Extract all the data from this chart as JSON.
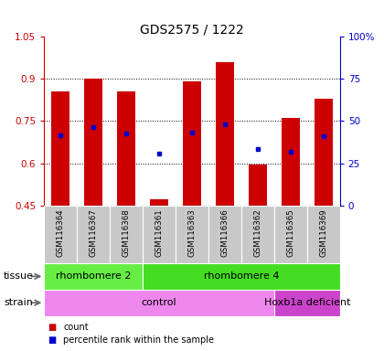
{
  "title": "GDS2575 / 1222",
  "samples": [
    "GSM116364",
    "GSM116367",
    "GSM116368",
    "GSM116361",
    "GSM116363",
    "GSM116366",
    "GSM116362",
    "GSM116365",
    "GSM116369"
  ],
  "count_values": [
    0.855,
    0.9,
    0.855,
    0.47,
    0.89,
    0.96,
    0.595,
    0.76,
    0.83
  ],
  "percentile_values": [
    0.7,
    0.73,
    0.705,
    0.635,
    0.71,
    0.74,
    0.65,
    0.64,
    0.695
  ],
  "bar_bottom": 0.45,
  "ylim_left": [
    0.45,
    1.05
  ],
  "ylim_right": [
    0,
    100
  ],
  "yticks_left": [
    0.45,
    0.6,
    0.75,
    0.9,
    1.05
  ],
  "yticks_left_labels": [
    "0.45",
    "0.6",
    "0.75",
    "0.9",
    "1.05"
  ],
  "yticks_right": [
    0,
    25,
    50,
    75,
    100
  ],
  "yticks_right_labels": [
    "0",
    "25",
    "50",
    "75",
    "100%"
  ],
  "bar_color": "#cc0000",
  "dot_color": "#0000cc",
  "tissue_groups": [
    {
      "label": "rhombomere 2",
      "start": 0,
      "end": 3,
      "color": "#66ee44"
    },
    {
      "label": "rhombomere 4",
      "start": 3,
      "end": 9,
      "color": "#44dd22"
    }
  ],
  "strain_groups": [
    {
      "label": "control",
      "start": 0,
      "end": 7,
      "color": "#ee88ee"
    },
    {
      "label": "Hoxb1a deficient",
      "start": 7,
      "end": 9,
      "color": "#cc44cc"
    }
  ],
  "legend_items": [
    {
      "color": "#cc0000",
      "label": "count"
    },
    {
      "color": "#0000cc",
      "label": "percentile rank within the sample"
    }
  ],
  "tissue_label": "tissue",
  "strain_label": "strain",
  "bg_color": "#c8c8c8",
  "grid_ticks": [
    0.6,
    0.75,
    0.9
  ]
}
